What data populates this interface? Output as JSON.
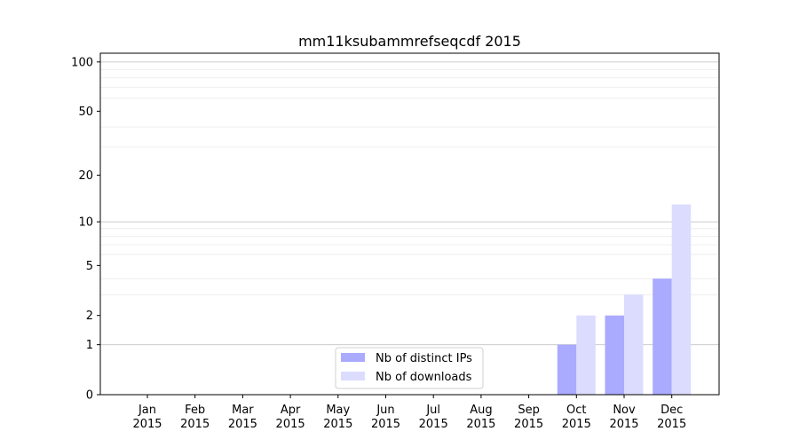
{
  "chart_data": {
    "type": "bar",
    "title": "mm11ksubammrefseqcdf 2015",
    "xlabel": "",
    "ylabel": "",
    "yscale": "log10(1+y)",
    "ylim": [
      0,
      113
    ],
    "yticks": [
      0,
      1,
      2,
      5,
      10,
      20,
      50,
      100
    ],
    "major_grid": [
      1,
      10,
      100
    ],
    "minor_grid": [
      3,
      4,
      6,
      7,
      8,
      9,
      30,
      40,
      60,
      70,
      80,
      90
    ],
    "categories": [
      [
        "Jan",
        "2015"
      ],
      [
        "Feb",
        "2015"
      ],
      [
        "Mar",
        "2015"
      ],
      [
        "Apr",
        "2015"
      ],
      [
        "May",
        "2015"
      ],
      [
        "Jun",
        "2015"
      ],
      [
        "Jul",
        "2015"
      ],
      [
        "Aug",
        "2015"
      ],
      [
        "Sep",
        "2015"
      ],
      [
        "Oct",
        "2015"
      ],
      [
        "Nov",
        "2015"
      ],
      [
        "Dec",
        "2015"
      ]
    ],
    "series": [
      {
        "name": "Nb of distinct IPs",
        "color": "#aaaaff",
        "values": [
          0,
          0,
          0,
          0,
          0,
          0,
          0,
          0,
          0,
          1,
          2,
          4
        ]
      },
      {
        "name": "Nb of downloads",
        "color": "#dcdcff",
        "values": [
          0,
          0,
          0,
          0,
          0,
          0,
          0,
          0,
          0,
          2,
          3,
          13
        ]
      }
    ],
    "legend": "bottom-center",
    "grid": true
  }
}
